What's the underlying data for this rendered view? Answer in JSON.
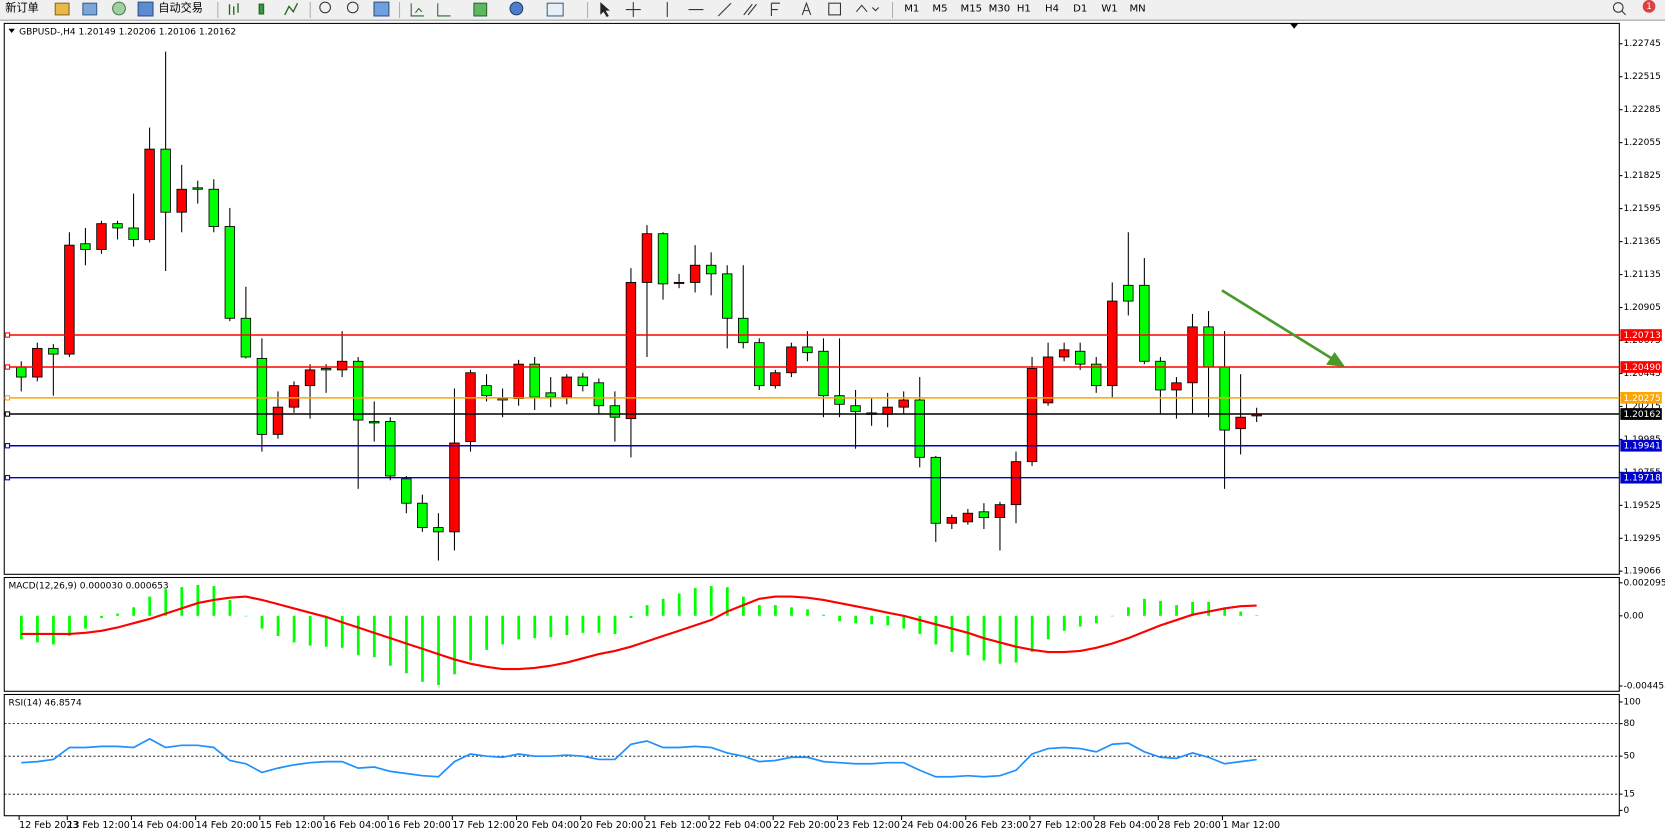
{
  "toolbar": {
    "new_order": "新订单",
    "auto_trading": "自动交易",
    "timeframes": [
      "M1",
      "M5",
      "M15",
      "M30",
      "H1",
      "H4",
      "D1",
      "W1",
      "MN"
    ],
    "badge": 1
  },
  "chart_data": [
    {
      "type": "candlestick",
      "title": "GBPUSD-,H4  1.20149 1.20206 1.20106 1.20162",
      "categories": [
        "12 Feb 2023",
        null,
        null,
        "13 Feb 12:00",
        null,
        null,
        null,
        "14 Feb 04:00",
        null,
        null,
        null,
        "14 Feb 20:00",
        null,
        null,
        null,
        "15 Feb 12:00",
        null,
        null,
        null,
        "16 Feb 04:00",
        null,
        null,
        null,
        "16 Feb 20:00",
        null,
        null,
        null,
        "17 Feb 12:00",
        null,
        null,
        null,
        "20 Feb 04:00",
        null,
        null,
        null,
        "20 Feb 20:00",
        null,
        null,
        null,
        "21 Feb 12:00",
        null,
        null,
        null,
        "22 Feb 04:00",
        null,
        null,
        null,
        "22 Feb 20:00",
        null,
        null,
        null,
        "23 Feb 12:00",
        null,
        null,
        null,
        "24 Feb 04:00",
        null,
        null,
        null,
        "26 Feb 23:00",
        null,
        null,
        null,
        "27 Feb 12:00",
        null,
        null,
        null,
        "28 Feb 04:00",
        null,
        null,
        null,
        "28 Feb 20:00",
        null,
        null,
        null,
        "1 Mar 12:00",
        null,
        null
      ],
      "open": [
        1.2049,
        1.2042,
        1.2062,
        1.2058,
        1.2135,
        1.2131,
        1.2149,
        1.2146,
        1.2138,
        1.2201,
        1.2157,
        1.2174,
        1.2173,
        1.2147,
        1.2083,
        1.2055,
        1.2002,
        1.2021,
        1.2036,
        1.2048,
        1.2047,
        1.2053,
        1.2011,
        1.2011,
        1.1971,
        1.1954,
        1.1937,
        1.1934,
        1.1997,
        1.2036,
        1.2027,
        1.2027,
        1.2051,
        1.2031,
        1.2028,
        1.2042,
        1.2038,
        1.2022,
        1.2013,
        1.2108,
        1.2142,
        1.2108,
        1.2108,
        1.212,
        1.2114,
        1.2083,
        1.2066,
        1.2036,
        1.2045,
        1.2063,
        1.206,
        1.2029,
        1.2022,
        1.2017,
        1.2016,
        1.2021,
        1.2026,
        1.1986,
        1.194,
        1.1941,
        1.1948,
        1.1944,
        1.1953,
        1.1983,
        1.2024,
        1.2056,
        1.206,
        1.2051,
        1.2036,
        1.2106,
        1.2106,
        1.2053,
        1.2033,
        1.2038,
        1.2077,
        1.2049,
        1.2006,
        1.20149
      ],
      "high": [
        1.2053,
        1.2066,
        1.2065,
        1.2143,
        1.2146,
        1.2151,
        1.2151,
        1.217,
        1.2216,
        1.2269,
        1.219,
        1.2179,
        1.218,
        1.216,
        1.2105,
        1.2069,
        1.2032,
        1.2039,
        1.2051,
        1.2051,
        1.2074,
        1.2056,
        1.2025,
        1.2014,
        1.1973,
        1.196,
        1.1947,
        1.2034,
        1.2047,
        1.2044,
        1.2034,
        1.2054,
        1.2056,
        1.2042,
        1.2044,
        1.2045,
        1.2041,
        1.2032,
        1.2118,
        1.2148,
        1.2143,
        1.2114,
        1.2134,
        1.2129,
        1.212,
        1.212,
        1.2069,
        1.2047,
        1.2066,
        1.2074,
        1.2069,
        1.2069,
        1.2033,
        1.2027,
        1.2031,
        1.2032,
        1.2042,
        1.1987,
        1.1946,
        1.195,
        1.1954,
        1.1955,
        1.199,
        1.2056,
        1.2066,
        1.2066,
        1.2066,
        1.2056,
        1.2108,
        1.2143,
        1.2125,
        1.2056,
        1.2042,
        1.2086,
        1.2088,
        1.2074,
        1.2044,
        1.20206
      ],
      "low": [
        1.2032,
        1.2039,
        1.2029,
        1.2056,
        1.212,
        1.2128,
        1.2138,
        1.2133,
        1.2136,
        1.2116,
        1.2143,
        1.2163,
        1.2143,
        1.2081,
        1.2055,
        1.199,
        1.1999,
        1.2017,
        1.2013,
        1.2031,
        1.2042,
        1.1964,
        1.1997,
        1.197,
        1.1947,
        1.1934,
        1.1914,
        1.1921,
        1.199,
        1.2025,
        1.2014,
        1.2022,
        1.2019,
        1.2021,
        1.2023,
        1.2032,
        1.2016,
        1.1997,
        1.1986,
        1.2056,
        1.2096,
        1.2104,
        1.2101,
        1.2099,
        1.2062,
        1.2062,
        1.2033,
        1.2034,
        1.2042,
        1.2053,
        1.2014,
        1.2014,
        1.1992,
        1.2008,
        1.2007,
        1.2016,
        1.1979,
        1.1927,
        1.1936,
        1.1939,
        1.1936,
        1.1921,
        1.194,
        1.198,
        1.2022,
        1.2053,
        1.2047,
        1.2031,
        1.2027,
        1.2085,
        1.2051,
        1.2016,
        1.2013,
        1.2016,
        1.2014,
        1.1964,
        1.1988,
        1.20106
      ],
      "close": [
        1.2042,
        1.2062,
        1.2058,
        1.2134,
        1.2131,
        1.2149,
        1.2146,
        1.2138,
        1.2201,
        1.2157,
        1.2173,
        1.2173,
        1.2147,
        1.2083,
        1.2056,
        1.2002,
        1.2021,
        1.2036,
        1.2047,
        1.2047,
        1.2053,
        1.2012,
        1.201,
        1.1973,
        1.1954,
        1.1937,
        1.1934,
        1.1996,
        1.2045,
        1.2029,
        1.2026,
        1.2051,
        1.2028,
        1.2028,
        1.2042,
        1.2036,
        1.2022,
        1.2014,
        1.2108,
        1.2142,
        1.2107,
        1.2108,
        1.212,
        1.2114,
        1.2083,
        1.2066,
        1.2036,
        1.2045,
        1.2063,
        1.2059,
        1.2029,
        1.2023,
        1.2018,
        1.2016,
        1.2021,
        1.2026,
        1.1986,
        1.194,
        1.1944,
        1.1947,
        1.1944,
        1.1953,
        1.1983,
        1.2048,
        1.2056,
        1.2061,
        1.2051,
        1.2036,
        1.2095,
        1.2095,
        1.2053,
        1.2033,
        1.2038,
        1.2077,
        1.2049,
        1.2005,
        1.2014,
        1.20162
      ],
      "up_color": "#ff0000",
      "down_color": "#00ff00",
      "ylim": [
        1.19044,
        1.22887
      ],
      "yticks": [
        1.22745,
        1.22515,
        1.22285,
        1.22055,
        1.21825,
        1.21595,
        1.21365,
        1.21135,
        1.20905,
        1.20675,
        1.20445,
        1.20215,
        1.19985,
        1.19755,
        1.19525,
        1.19295,
        1.19066
      ],
      "levels": [
        {
          "value": 1.20713,
          "color": "#ff0000"
        },
        {
          "value": 1.2049,
          "label": "1.20490",
          "color": "#ff0000"
        },
        {
          "value": 1.20275,
          "color": "#ffa500"
        },
        {
          "value": 1.19941,
          "color": "#0000cd"
        },
        {
          "value": 1.19718,
          "color": "#0000cd"
        },
        {
          "value": 1.20162,
          "color": "#000000"
        }
      ]
    },
    {
      "type": "macd",
      "title": "MACD(12,26,9) 0.000030 0.000653",
      "histogram": {
        "color": "#00ff00",
        "values": [
          -0.00149,
          -0.00169,
          -0.00182,
          -0.00128,
          -0.00081,
          -0.00014,
          0.00014,
          0.00054,
          0.00122,
          0.00169,
          0.00182,
          0.00196,
          0.00189,
          0.00101,
          0,
          -0.00081,
          -0.00128,
          -0.00169,
          -0.00189,
          -0.00196,
          -0.00203,
          -0.0025,
          -0.00263,
          -0.00317,
          -0.00365,
          -0.00419,
          -0.00439,
          -0.00371,
          -0.00284,
          -0.00216,
          -0.00182,
          -0.00149,
          -0.00142,
          -0.00135,
          -0.00122,
          -0.00108,
          -0.00108,
          -0.00115,
          -0.00014,
          0.00068,
          0.00108,
          0.00142,
          0.00176,
          0.00189,
          0.00182,
          0.00122,
          0.00068,
          0.00068,
          0.00054,
          0.00041,
          7e-05,
          -0.00034,
          -0.00047,
          -0.00054,
          -0.00061,
          -0.00081,
          -0.00115,
          -0.00182,
          -0.0023,
          -0.0025,
          -0.00284,
          -0.00304,
          -0.00297,
          -0.0023,
          -0.00149,
          -0.00095,
          -0.00068,
          -0.00047,
          0,
          0.00054,
          0.00108,
          0.00095,
          0.00068,
          0.00088,
          0.00088,
          0.00054,
          0.00027,
          3e-05
        ]
      },
      "signal": {
        "color": "#ff0000",
        "values": [
          -0.00115,
          -0.00115,
          -0.00115,
          -0.00115,
          -0.00108,
          -0.00095,
          -0.00074,
          -0.00047,
          -0.0002,
          0.00014,
          0.00047,
          0.00081,
          0.00101,
          0.00115,
          0.00122,
          0.00101,
          0.00074,
          0.00047,
          0.0002,
          -7e-05,
          -0.00041,
          -0.00074,
          -0.00108,
          -0.00142,
          -0.00176,
          -0.00209,
          -0.00243,
          -0.00277,
          -0.00304,
          -0.00324,
          -0.00338,
          -0.00338,
          -0.00331,
          -0.00317,
          -0.00297,
          -0.0027,
          -0.00243,
          -0.00223,
          -0.00196,
          -0.00162,
          -0.00128,
          -0.00095,
          -0.00061,
          -0.00027,
          0.00027,
          0.00068,
          0.00108,
          0.00122,
          0.00122,
          0.00115,
          0.00101,
          0.00081,
          0.00061,
          0.00041,
          0.0002,
          0,
          -0.00027,
          -0.00054,
          -0.00081,
          -0.00108,
          -0.00142,
          -0.00169,
          -0.00196,
          -0.00216,
          -0.0023,
          -0.0023,
          -0.00223,
          -0.00203,
          -0.00176,
          -0.00142,
          -0.00101,
          -0.00061,
          -0.00027,
          7e-05,
          0.00027,
          0.00047,
          0.00061,
          0.000653
        ]
      },
      "ylim": [
        -0.004455,
        0.002095
      ],
      "yticks": [
        0.002095,
        {
          "value": 0,
          "label": "0.00"
        },
        -0.004455
      ]
    },
    {
      "type": "line",
      "title": "RSI(14) 46.8574",
      "color": "#1e90ff",
      "values": [
        44,
        45,
        47,
        58,
        58,
        59,
        59,
        58,
        66,
        58,
        60,
        60,
        58,
        46,
        43,
        35,
        39,
        42,
        44,
        45,
        45,
        39,
        40,
        36,
        34,
        32,
        31,
        45,
        52,
        50,
        49,
        52,
        50,
        50,
        51,
        50,
        47,
        47,
        61,
        64,
        58,
        58,
        59,
        58,
        53,
        50,
        45,
        46,
        49,
        49,
        45,
        44,
        43,
        43,
        44,
        44,
        37,
        31,
        31,
        32,
        31,
        32,
        37,
        52,
        57,
        58,
        57,
        54,
        61,
        62,
        54,
        49,
        48,
        53,
        49,
        43,
        45,
        46.8574
      ],
      "ylim": [
        0,
        100
      ],
      "yticks": [
        100,
        80,
        50,
        15,
        0
      ],
      "grid": true
    }
  ]
}
